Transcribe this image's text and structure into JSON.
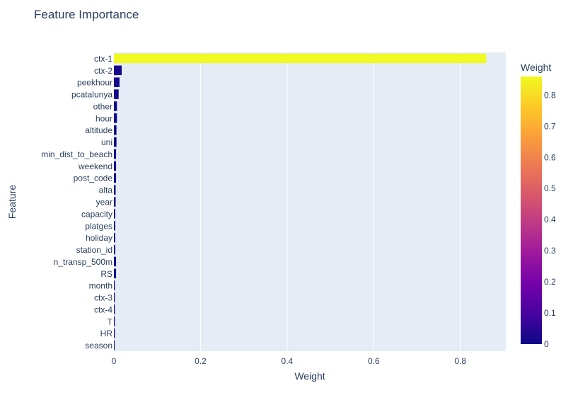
{
  "chart_data": {
    "type": "bar",
    "orientation": "horizontal",
    "title": "Feature Importance",
    "xlabel": "Weight",
    "ylabel": "Feature",
    "xlim": [
      0,
      0.905
    ],
    "xticks": [
      0,
      0.2,
      0.4,
      0.6,
      0.8
    ],
    "xtick_labels": [
      "0",
      "0.2",
      "0.4",
      "0.6",
      "0.8"
    ],
    "grid": true,
    "categories": [
      "ctx-1",
      "ctx-2",
      "peekhour",
      "pcatalunya",
      "other",
      "hour",
      "altitude",
      "uni",
      "min_dist_to_beach",
      "weekend",
      "post_code",
      "alta",
      "year",
      "capacity",
      "platges",
      "holiday",
      "station_id",
      "n_transp_500m",
      "RS",
      "month",
      "ctx-3",
      "ctx-4",
      "T",
      "HR",
      "season"
    ],
    "values": [
      0.86,
      0.018,
      0.013,
      0.011,
      0.007,
      0.007,
      0.006,
      0.006,
      0.005,
      0.005,
      0.005,
      0.004,
      0.004,
      0.003,
      0.003,
      0.003,
      0.003,
      0.005,
      0.005,
      0.002,
      0.002,
      0.002,
      0.002,
      0.002,
      0.001
    ],
    "colorbar": {
      "title": "Weight",
      "range": [
        0,
        0.86
      ],
      "ticks": [
        0,
        0.1,
        0.2,
        0.3,
        0.4,
        0.5,
        0.6,
        0.7,
        0.8
      ],
      "tick_labels": [
        "0",
        "0.1",
        "0.2",
        "0.3",
        "0.4",
        "0.5",
        "0.6",
        "0.7",
        "0.8"
      ],
      "colorscale": [
        "#0d0887",
        "#46039f",
        "#7201a8",
        "#9c179e",
        "#bd3786",
        "#d8576b",
        "#ed7953",
        "#fb9f3a",
        "#fdca26",
        "#f0f921"
      ]
    },
    "plot_background": "#e5ecf6",
    "grid_color": "#ffffff"
  }
}
